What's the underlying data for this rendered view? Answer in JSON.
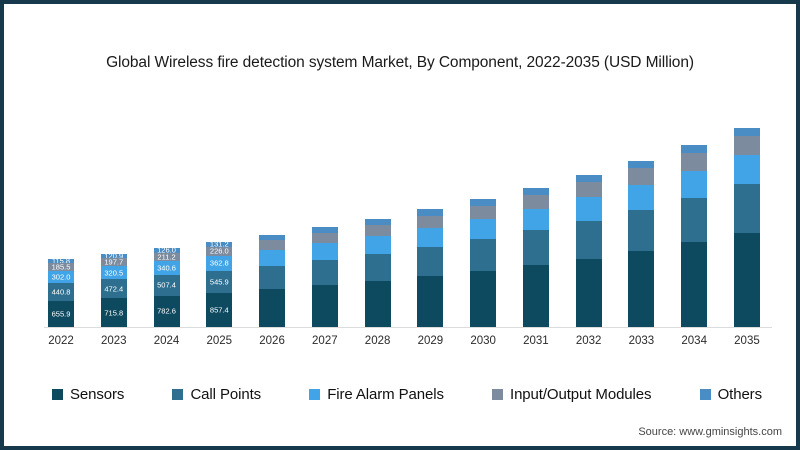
{
  "frame": {
    "border_color": "#16394C",
    "background": "#FFFFFF"
  },
  "title": "Global Wireless fire detection system Market, By Component, 2022-2035 (USD Million)",
  "source": "Source: www.gminsights.com",
  "chart_data": {
    "type": "bar",
    "stacked": true,
    "title": "Global Wireless fire detection system Market, By Component, 2022-2035 (USD Million)",
    "xlabel": "",
    "ylabel": "USD Million",
    "categories": [
      "2022",
      "2023",
      "2024",
      "2025",
      "2026",
      "2027",
      "2028",
      "2029",
      "2030",
      "2031",
      "2032",
      "2033",
      "2034",
      "2035"
    ],
    "series": [
      {
        "name": "Sensors",
        "color": "#0E4A5F",
        "values": [
          655.9,
          715.8,
          782.6,
          857.4,
          941,
          1035,
          1140,
          1258,
          1390,
          1538,
          1705,
          1893,
          2105,
          2343
        ]
      },
      {
        "name": "Call Points",
        "color": "#2E6F90",
        "values": [
          440.8,
          472.4,
          507.4,
          545.9,
          588,
          634,
          685,
          741,
          802,
          869,
          943,
          1024,
          1113,
          1211
        ]
      },
      {
        "name": "Fire Alarm Panels",
        "color": "#41A4E6",
        "values": [
          302.0,
          320.5,
          340.6,
          362.8,
          387,
          413,
          442,
          473,
          506,
          542,
          582,
          625,
          672,
          723
        ]
      },
      {
        "name": "Input/Output Modules",
        "color": "#7C8B9D",
        "values": [
          185.5,
          197.7,
          211.2,
          226.0,
          242,
          260,
          279,
          300,
          323,
          348,
          375,
          405,
          438,
          474
        ]
      },
      {
        "name": "Others",
        "color": "#4A8CC4",
        "values": [
          115.8,
          120.9,
          126.0,
          131.2,
          137,
          143,
          149,
          156,
          163,
          170,
          178,
          187,
          196,
          206
        ]
      }
    ],
    "stack_order_bottom_to_top": [
      "Sensors",
      "Call Points",
      "Fire Alarm Panels",
      "Input/Output Modules",
      "Others"
    ],
    "value_labels_visible_for_categories": [
      "2022",
      "2023",
      "2024",
      "2025"
    ],
    "note": "Segment values for 2026-2035 carry no on-chart labels; they are estimated from bar heights.",
    "legend_position": "bottom",
    "grid": false,
    "axis_line_color": "#DCDCDC",
    "value_label_color": "#FFFFFF"
  }
}
